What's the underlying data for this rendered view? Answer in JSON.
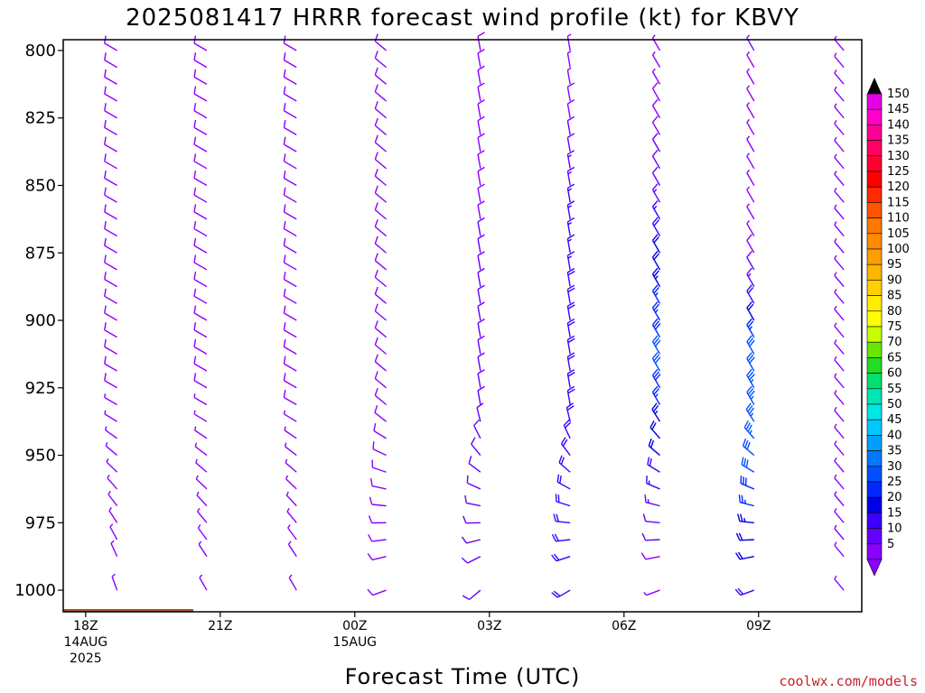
{
  "title": "2025081417 HRRR forecast wind profile (kt) for KBVY",
  "credit": "coolwx.com/models",
  "chart_data": {
    "type": "wind-barb-time-height",
    "title": "2025081417 HRRR forecast wind profile (kt) for KBVY",
    "xlabel": "Forecast Time (UTC)",
    "ylabel": "",
    "y_axis": {
      "reversed": true,
      "ylim": [
        1008,
        796
      ],
      "ticks": [
        800,
        825,
        850,
        875,
        900,
        925,
        950,
        975,
        1000
      ]
    },
    "x_ticks": [
      {
        "hour": 18,
        "label": "18Z",
        "sub": [
          "14AUG",
          "2025"
        ]
      },
      {
        "hour": 21,
        "label": "21Z",
        "sub": []
      },
      {
        "hour": 24,
        "label": "00Z",
        "sub": [
          "15AUG"
        ]
      },
      {
        "hour": 27,
        "label": "03Z",
        "sub": []
      },
      {
        "hour": 30,
        "label": "06Z",
        "sub": []
      },
      {
        "hour": 33,
        "label": "09Z",
        "sub": []
      }
    ],
    "xlim": [
      17.5,
      35.3
    ],
    "columns": [
      {
        "hour": 18.7,
        "surface_p": 1007,
        "dir": 300,
        "speed": [
          8,
          8,
          8,
          8,
          8,
          8,
          8,
          8,
          8,
          8,
          8,
          8,
          8,
          8,
          8,
          8,
          8,
          8,
          8,
          8,
          8,
          6,
          5,
          5,
          5,
          5,
          5,
          5,
          5,
          5,
          5,
          5
        ],
        "dir_low": 340
      },
      {
        "hour": 20.7,
        "surface_p": 1008,
        "dir": 300,
        "speed": [
          8,
          8,
          8,
          8,
          8,
          8,
          8,
          8,
          8,
          8,
          8,
          8,
          8,
          8,
          8,
          8,
          8,
          8,
          8,
          8,
          8,
          7,
          6,
          6,
          6,
          6,
          6,
          6,
          6,
          6,
          6,
          6
        ],
        "dir_low": 330
      },
      {
        "hour": 22.7,
        "surface_p": 1009,
        "dir": 300,
        "speed": [
          8,
          8,
          8,
          8,
          8,
          8,
          8,
          8,
          8,
          8,
          8,
          8,
          8,
          8,
          8,
          8,
          8,
          8,
          8,
          8,
          8,
          8,
          6,
          6,
          6,
          6,
          6,
          6,
          6,
          6,
          6,
          6
        ],
        "dir_low": 330
      },
      {
        "hour": 24.7,
        "surface_p": 1009,
        "dir": 310,
        "speed": [
          8,
          8,
          8,
          8,
          8,
          8,
          8,
          8,
          8,
          8,
          8,
          8,
          8,
          8,
          8,
          8,
          8,
          8,
          8,
          8,
          8,
          8,
          8,
          8,
          8,
          8,
          8,
          8,
          8,
          8,
          8,
          8
        ],
        "dir_low": 250
      },
      {
        "hour": 26.8,
        "surface_p": 1010,
        "dir": 350,
        "speed": [
          8,
          8,
          8,
          8,
          9,
          9,
          9,
          9,
          9,
          9,
          9,
          10,
          10,
          10,
          10,
          10,
          10,
          10,
          10,
          10,
          10,
          10,
          10,
          10,
          10,
          10,
          10,
          10,
          10,
          10,
          10,
          10
        ],
        "dir_low": 230
      },
      {
        "hour": 28.8,
        "surface_p": 1011,
        "dir": 350,
        "speed": [
          5,
          6,
          7,
          8,
          9,
          10,
          12,
          13,
          14,
          15,
          16,
          16,
          17,
          17,
          18,
          18,
          18,
          18,
          18,
          18,
          18,
          18,
          18,
          18,
          18,
          18,
          18,
          18,
          18,
          18,
          18,
          18
        ],
        "dir_low": 240
      },
      {
        "hour": 30.8,
        "surface_p": 1011,
        "dir": 330,
        "speed": [
          5,
          6,
          7,
          8,
          8,
          9,
          10,
          11,
          12,
          14,
          16,
          18,
          20,
          22,
          24,
          25,
          26,
          28,
          30,
          30,
          28,
          26,
          24,
          22,
          20,
          18,
          16,
          14,
          12,
          10,
          8,
          6
        ],
        "dir_low": 250
      },
      {
        "hour": 32.9,
        "surface_p": 1012,
        "dir": 330,
        "speed": [
          5,
          5,
          6,
          6,
          6,
          6,
          6,
          6,
          6,
          6,
          6,
          6,
          8,
          10,
          14,
          18,
          22,
          26,
          30,
          32,
          34,
          34,
          34,
          33,
          32,
          30,
          28,
          26,
          24,
          22,
          20,
          18
        ],
        "dir_low": 250
      },
      {
        "hour": 34.9,
        "surface_p": 1012,
        "dir": 320,
        "speed": [
          6,
          6,
          6,
          6,
          6,
          6,
          6,
          6,
          6,
          6,
          6,
          6,
          6,
          6,
          6,
          6,
          6,
          6,
          6,
          6,
          6,
          6,
          6,
          6,
          6,
          6,
          6,
          6,
          6,
          6,
          6,
          6
        ],
        "dir_low": 320
      }
    ],
    "levels_hpa": [
      800,
      806.25,
      812.5,
      818.75,
      825,
      831.25,
      837.5,
      843.75,
      850,
      856.25,
      862.5,
      868.75,
      875,
      881.25,
      887.5,
      893.75,
      900,
      906.25,
      912.5,
      918.75,
      925,
      931.25,
      937.5,
      943.75,
      950,
      956.25,
      962.5,
      968.75,
      975,
      981.25,
      987.5,
      1000
    ],
    "terrain": [
      {
        "from": 17.5,
        "to": 20.4,
        "p": 1007
      },
      {
        "from": 20.4,
        "to": 23.4,
        "p": 1008
      },
      {
        "from": 23.4,
        "to": 26.4,
        "p": 1009.5
      },
      {
        "from": 26.4,
        "to": 29.4,
        "p": 1010.5
      },
      {
        "from": 29.4,
        "to": 32.4,
        "p": 1011.5
      },
      {
        "from": 32.4,
        "to": 35.4,
        "p": 1012
      },
      {
        "from": 35.4,
        "to": 35.3,
        "p": 1012.5
      }
    ],
    "terrain_color": "#a0522d",
    "colorbar": {
      "labels": [
        150,
        145,
        140,
        135,
        130,
        125,
        120,
        115,
        110,
        105,
        100,
        95,
        90,
        85,
        80,
        75,
        70,
        65,
        60,
        55,
        50,
        45,
        40,
        35,
        30,
        25,
        20,
        15,
        10,
        5
      ],
      "colors": [
        "#e400e4",
        "#ff00c8",
        "#ff0096",
        "#ff0064",
        "#ff0032",
        "#ff0000",
        "#ff2a00",
        "#ff5500",
        "#ff7700",
        "#ff8c00",
        "#ff9e00",
        "#ffb400",
        "#ffd000",
        "#ffee00",
        "#ffff00",
        "#c8ff00",
        "#66e600",
        "#22dd22",
        "#00e070",
        "#00e6b4",
        "#00e6e6",
        "#00c8ff",
        "#00a0ff",
        "#0078ff",
        "#0050ff",
        "#0028ff",
        "#0000e6",
        "#3c00ff",
        "#6400ff",
        "#8c00ff"
      ],
      "top_arrow_color": "#000000",
      "bottom_arrow_color": "#8c00ff"
    }
  }
}
